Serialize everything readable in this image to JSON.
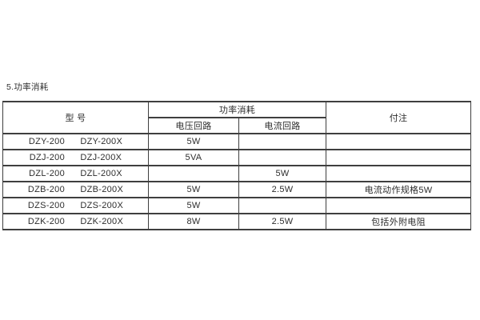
{
  "page": {
    "section_title": "5.功率消耗"
  },
  "colors": {
    "background": "#ffffff",
    "border": "#3f3f3f",
    "text": "#2d2d2d"
  },
  "table": {
    "headers": {
      "model": "型  号",
      "power_group": "功率消耗",
      "voltage_circuit": "电压回路",
      "current_circuit": "电流回路",
      "remark": "付注"
    },
    "rows": [
      {
        "model_a": "DZY-200",
        "model_b": "DZY-200X",
        "voltage": "5W",
        "current": "",
        "remark": ""
      },
      {
        "model_a": "DZJ-200",
        "model_b": "DZJ-200X",
        "voltage": "5VA",
        "current": "",
        "remark": ""
      },
      {
        "model_a": "DZL-200",
        "model_b": "DZL-200X",
        "voltage": "",
        "current": "5W",
        "remark": ""
      },
      {
        "model_a": "DZB-200",
        "model_b": "DZB-200X",
        "voltage": "5W",
        "current": "2.5W",
        "remark": "电流动作规格5W"
      },
      {
        "model_a": "DZS-200",
        "model_b": "DZS-200X",
        "voltage": "5W",
        "current": "",
        "remark": ""
      },
      {
        "model_a": "DZK-200",
        "model_b": "DZK-200X",
        "voltage": "8W",
        "current": "2.5W",
        "remark": "包括外附电阻"
      }
    ]
  }
}
